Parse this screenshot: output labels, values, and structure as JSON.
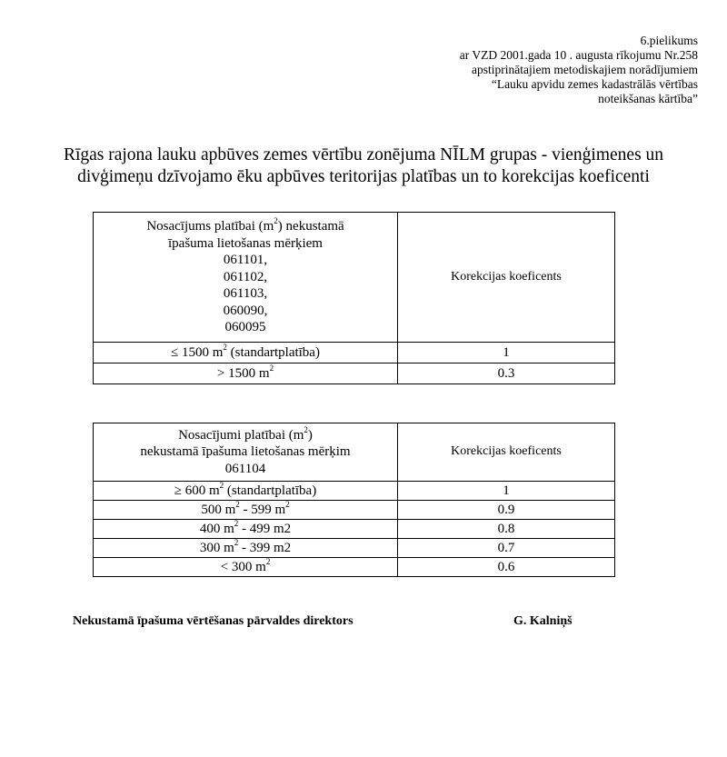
{
  "header": {
    "lines": [
      "6.pielikums",
      "ar VZD 2001.gada 10 . augusta rīkojumu Nr.258",
      "apstiprinātajiem metodiskajiem norādījumiem",
      "“Lauku apvidu zemes kadastrālās vērtības",
      "noteikšanas kārtība”"
    ]
  },
  "title": {
    "line1": "Rīgas rajona lauku apbūves zemes vērtību zonējuma NĪLM grupas - vienģimenes un",
    "line2": "divģimeņu dzīvojamo ēku apbūves teritorijas platības un to korekcijas koeficenti"
  },
  "table1": {
    "header_left": {
      "a": "Nosacījums platībai (m",
      "sup": "2",
      "b": ") nekustamā",
      "c": "īpašuma lietošanas mērķiem",
      "codes": [
        "061101,",
        "061102,",
        "061103,",
        "060090,",
        "060095"
      ]
    },
    "header_right": "Korekcijas koeficents",
    "rows": [
      {
        "a": "≤ 1500 m",
        "sup": "2",
        "b": " (standartplatība)",
        "value": "1"
      },
      {
        "a": "> 1500 m",
        "sup": "2",
        "b": "",
        "value": "0.3"
      }
    ]
  },
  "table2": {
    "header_left": {
      "a": "Nosacījumi platībai (m",
      "sup": "2",
      "b": ")",
      "c": "nekustamā īpašuma lietošanas mērķim",
      "d": "061104"
    },
    "header_right": "Korekcijas koeficents",
    "rows": [
      {
        "a": "≥ 600 m",
        "sup": "2",
        "b": " (standartplatība)",
        "sup2": "",
        "c": "",
        "value": "1"
      },
      {
        "a": "500 m",
        "sup": "2",
        "b": " - 599 m",
        "sup2": "2",
        "c": "",
        "value": "0.9"
      },
      {
        "a": "400 m",
        "sup": "2",
        "b": " - 499 m2",
        "sup2": "",
        "c": "",
        "value": "0.8"
      },
      {
        "a": "300 m",
        "sup": "2",
        "b": " - 399 m2",
        "sup2": "",
        "c": "",
        "value": "0.7"
      },
      {
        "a": "< 300 m",
        "sup": "2",
        "b": "",
        "sup2": "",
        "c": "",
        "value": "0.6"
      }
    ]
  },
  "signature": {
    "position": "Nekustamā īpašuma vērtēšanas pārvaldes direktors",
    "name": "G. Kalniņš"
  }
}
